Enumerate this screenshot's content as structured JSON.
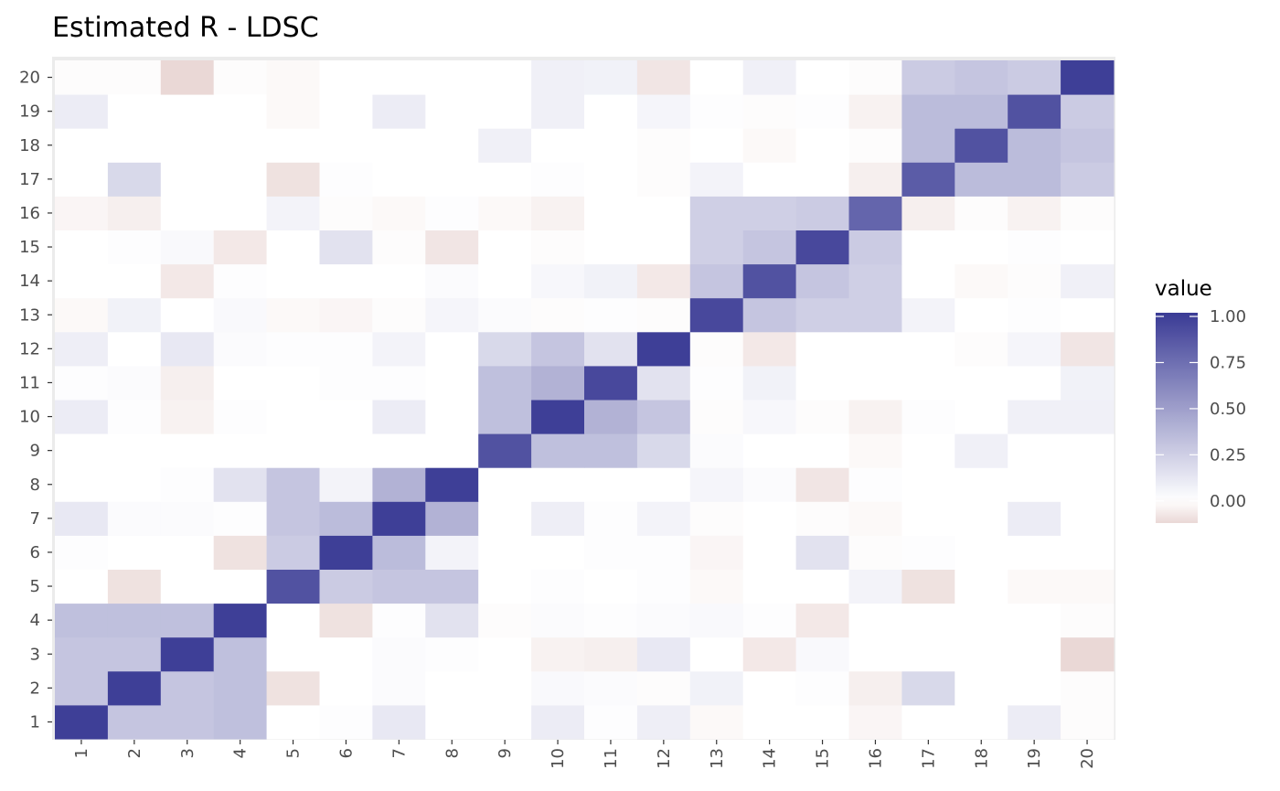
{
  "chart_data": {
    "type": "heatmap",
    "title": "Estimated R - LDSC",
    "x_categories": [
      "1",
      "2",
      "3",
      "4",
      "5",
      "6",
      "7",
      "8",
      "9",
      "10",
      "11",
      "12",
      "13",
      "14",
      "15",
      "16",
      "17",
      "18",
      "19",
      "20"
    ],
    "y_categories": [
      "1",
      "2",
      "3",
      "4",
      "5",
      "6",
      "7",
      "8",
      "9",
      "10",
      "11",
      "12",
      "13",
      "14",
      "15",
      "16",
      "17",
      "18",
      "19",
      "20"
    ],
    "legend": {
      "title": "value",
      "placement": "right",
      "ticks": [
        1.0,
        0.75,
        0.5,
        0.25,
        0.0
      ],
      "tick_labels": [
        "1.00",
        "0.75",
        "0.50",
        "0.25",
        "0.00"
      ],
      "range": [
        -0.12,
        1.02
      ]
    },
    "colors": {
      "low": "#ead8d6",
      "mid": "#ffffff",
      "high": "#3a3b95"
    },
    "grid": true,
    "matrix": [
      [
        1.0,
        0.3,
        0.3,
        0.33,
        0.0,
        0.01,
        0.12,
        0.0,
        0.0,
        0.1,
        0.01,
        0.09,
        -0.02,
        0.0,
        0.0,
        -0.03,
        0.0,
        0.0,
        0.1,
        -0.01
      ],
      [
        0.3,
        1.0,
        0.3,
        0.33,
        -0.09,
        0.0,
        0.02,
        0.0,
        0.0,
        0.03,
        0.02,
        -0.01,
        0.07,
        0.0,
        0.01,
        -0.05,
        0.2,
        0.0,
        0.0,
        -0.01
      ],
      [
        0.3,
        0.3,
        1.0,
        0.33,
        0.0,
        0.0,
        0.02,
        0.01,
        0.0,
        -0.04,
        -0.05,
        0.12,
        0.0,
        -0.07,
        0.03,
        0.0,
        0.0,
        0.0,
        0.0,
        -0.12
      ],
      [
        0.33,
        0.33,
        0.33,
        1.0,
        0.0,
        -0.09,
        0.01,
        0.15,
        -0.01,
        0.02,
        0.01,
        0.02,
        0.03,
        0.01,
        -0.07,
        0.0,
        0.0,
        0.0,
        0.0,
        -0.01
      ],
      [
        0.0,
        -0.09,
        0.0,
        0.0,
        0.9,
        0.27,
        0.3,
        0.3,
        0.0,
        0.01,
        0.0,
        0.01,
        -0.02,
        0.0,
        0.0,
        0.06,
        -0.09,
        0.0,
        -0.02,
        -0.02
      ],
      [
        0.01,
        0.0,
        0.0,
        -0.09,
        0.27,
        1.0,
        0.35,
        0.06,
        0.0,
        0.0,
        0.01,
        0.01,
        -0.03,
        0.0,
        0.15,
        -0.01,
        0.01,
        0.0,
        0.0,
        0.0
      ],
      [
        0.12,
        0.02,
        0.02,
        0.01,
        0.3,
        0.35,
        1.0,
        0.4,
        0.0,
        0.09,
        0.01,
        0.06,
        -0.01,
        0.0,
        -0.01,
        -0.02,
        0.0,
        0.0,
        0.1,
        0.0
      ],
      [
        0.0,
        0.0,
        0.01,
        0.15,
        0.3,
        0.06,
        0.4,
        1.0,
        0.0,
        0.0,
        0.0,
        0.0,
        0.05,
        0.02,
        -0.08,
        0.01,
        0.0,
        0.0,
        0.0,
        0.0
      ],
      [
        0.0,
        0.0,
        0.0,
        0.0,
        0.0,
        0.0,
        0.0,
        0.0,
        0.9,
        0.33,
        0.33,
        0.2,
        0.02,
        0.0,
        0.0,
        -0.02,
        0.0,
        0.08,
        0.0,
        0.0
      ],
      [
        0.1,
        0.01,
        -0.04,
        0.01,
        0.0,
        0.0,
        0.1,
        0.0,
        0.33,
        1.0,
        0.4,
        0.3,
        -0.01,
        0.04,
        -0.01,
        -0.04,
        0.01,
        0.0,
        0.08,
        0.08
      ],
      [
        0.01,
        0.02,
        -0.05,
        0.0,
        0.0,
        0.01,
        0.01,
        0.0,
        0.33,
        0.4,
        0.95,
        0.15,
        0.01,
        0.07,
        0.0,
        0.0,
        0.0,
        0.0,
        0.0,
        0.07
      ],
      [
        0.09,
        0.0,
        0.12,
        0.02,
        0.01,
        0.01,
        0.06,
        0.0,
        0.2,
        0.3,
        0.15,
        1.0,
        -0.01,
        -0.07,
        0.0,
        0.0,
        0.0,
        -0.01,
        0.05,
        -0.08
      ],
      [
        -0.02,
        0.07,
        0.0,
        0.03,
        -0.02,
        -0.03,
        -0.01,
        0.05,
        0.02,
        -0.01,
        0.01,
        -0.01,
        0.95,
        0.3,
        0.25,
        0.25,
        0.06,
        0.0,
        0.01,
        0.0
      ],
      [
        0.0,
        0.0,
        -0.07,
        0.01,
        0.0,
        0.0,
        0.0,
        0.02,
        0.0,
        0.04,
        0.07,
        -0.07,
        0.3,
        0.9,
        0.3,
        0.25,
        0.0,
        -0.02,
        -0.01,
        0.08
      ],
      [
        0.0,
        0.01,
        0.03,
        -0.07,
        0.0,
        0.15,
        -0.01,
        -0.08,
        0.0,
        -0.01,
        0.0,
        0.0,
        0.25,
        0.3,
        0.95,
        0.27,
        0.0,
        0.0,
        0.01,
        0.0
      ],
      [
        -0.03,
        -0.05,
        0.0,
        0.0,
        0.06,
        -0.01,
        -0.02,
        0.01,
        -0.02,
        -0.04,
        0.0,
        0.0,
        0.25,
        0.25,
        0.27,
        0.8,
        -0.05,
        -0.01,
        -0.04,
        -0.01
      ],
      [
        0.0,
        0.2,
        0.0,
        0.0,
        -0.09,
        0.01,
        0.0,
        0.0,
        0.0,
        0.01,
        0.0,
        -0.01,
        0.06,
        0.0,
        0.0,
        -0.05,
        0.85,
        0.35,
        0.35,
        0.27
      ],
      [
        0.0,
        0.0,
        0.0,
        0.0,
        0.0,
        0.0,
        0.0,
        0.0,
        0.08,
        0.0,
        0.0,
        -0.01,
        0.0,
        -0.02,
        0.0,
        -0.01,
        0.35,
        0.9,
        0.35,
        0.3
      ],
      [
        0.1,
        0.0,
        0.0,
        0.0,
        -0.02,
        0.0,
        0.1,
        0.0,
        0.0,
        0.08,
        0.0,
        0.05,
        0.01,
        -0.01,
        0.01,
        -0.04,
        0.35,
        0.35,
        0.9,
        0.27
      ],
      [
        -0.01,
        -0.01,
        -0.12,
        -0.01,
        -0.02,
        0.0,
        0.0,
        0.0,
        0.0,
        0.08,
        0.07,
        -0.08,
        0.0,
        0.08,
        0.0,
        -0.01,
        0.27,
        0.3,
        0.27,
        1.0
      ]
    ]
  }
}
